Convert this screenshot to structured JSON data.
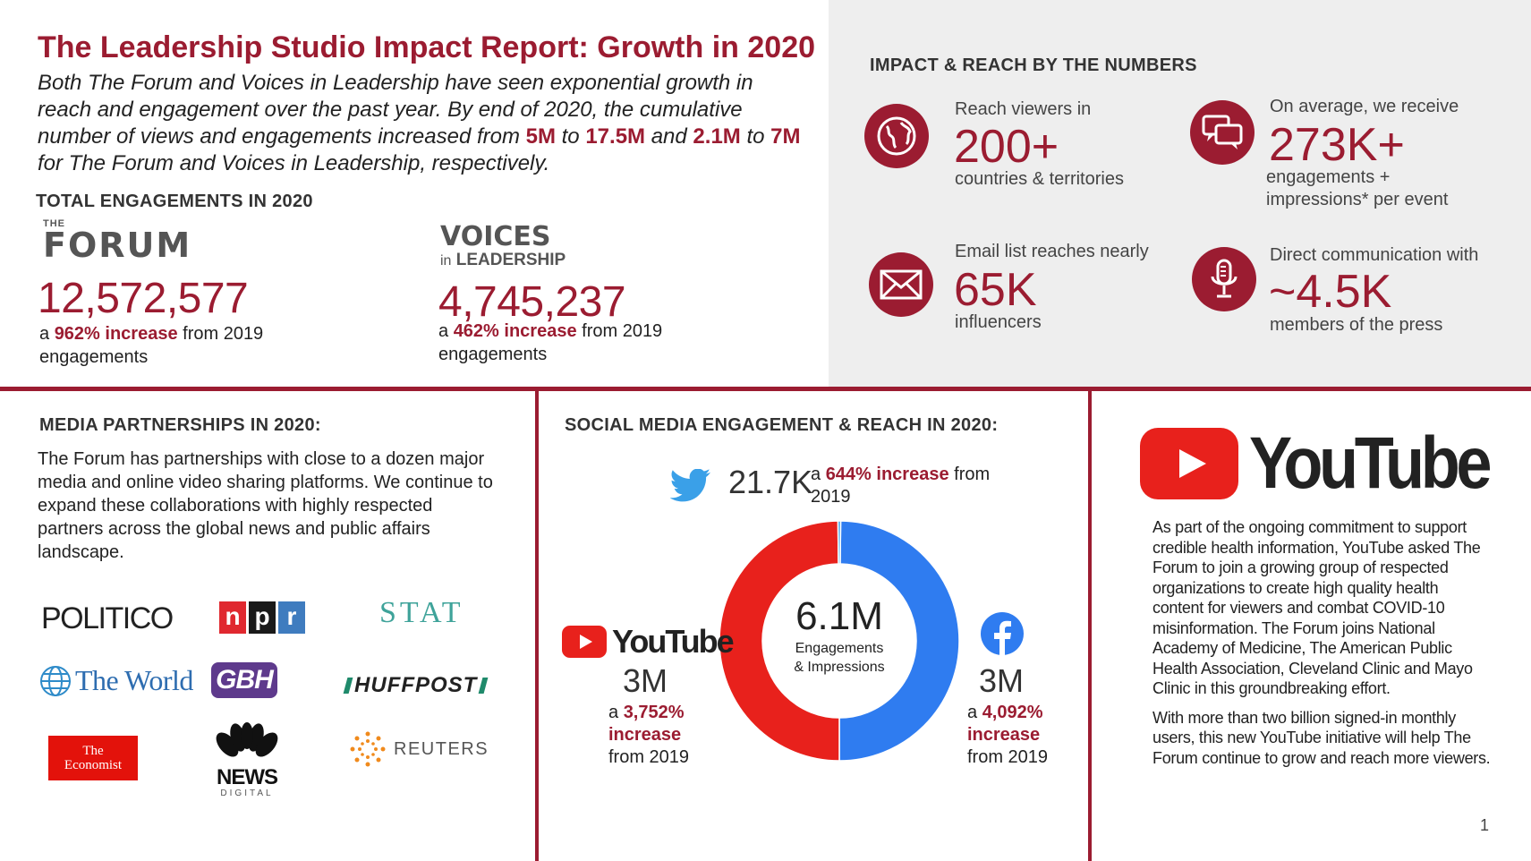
{
  "header": {
    "title": "The Leadership Studio Impact Report: Growth in 2020",
    "intro_part1": "Both The Forum and Voices in Leadership have seen exponential growth in reach and engagement over the past year. By end of 2020, the cumulative number of views and engagements increased from ",
    "intro_hl1": "5M",
    "intro_to1": " to ",
    "intro_hl2": "17.5M",
    "intro_part2": " and ",
    "intro_hl3": "2.1M",
    "intro_to2": " to ",
    "intro_hl4": "7M",
    "intro_part3": " for The Forum and Voices in Leadership, respectively."
  },
  "engagements": {
    "heading": "TOTAL ENGAGEMENTS IN 2020",
    "forum": {
      "logo_small": "THE",
      "logo_main": "FORUM",
      "total": "12,572,577",
      "prefix": "a ",
      "increase": "962% increase",
      "suffix": " from 2019 engagements"
    },
    "vil": {
      "logo_line1": "VOICES",
      "logo_in": "in",
      "logo_line2": "LEADERSHIP",
      "total": "4,745,237",
      "prefix": "a ",
      "increase": "462% increase",
      "suffix": " from 2019 engagements"
    }
  },
  "impact": {
    "heading": "IMPACT & REACH BY THE NUMBERS",
    "stats": [
      {
        "icon": "globe-icon",
        "label": "Reach viewers in",
        "value": "200+",
        "sub": "countries & territories"
      },
      {
        "icon": "chat-icon",
        "label": "On average, we receive",
        "value": "273K+",
        "sub": "engagements + impressions* per event"
      },
      {
        "icon": "envelope-icon",
        "label": "Email list reaches nearly",
        "value": "65K",
        "sub": "influencers"
      },
      {
        "icon": "microphone-icon",
        "label": "Direct communication with",
        "value": "~4.5K",
        "sub": "members of the press"
      }
    ]
  },
  "media": {
    "heading": "MEDIA PARTNERSHIPS IN 2020:",
    "body": "The Forum has partnerships with close to a dozen major media and online video sharing platforms. We continue to expand these collaborations with highly respected partners across the global news and public affairs landscape.",
    "partners": {
      "politico": "POLITICO",
      "npr": [
        "n",
        "p",
        "r"
      ],
      "stat": "STAT",
      "theworld": "The World",
      "gbh": "GBH",
      "huffpost": "HUFFPOST",
      "economist_1": "The",
      "economist_2": "Economist",
      "news": "NEWS",
      "news_sub": "DIGITAL",
      "reuters": "REUTERS"
    }
  },
  "social": {
    "heading": "SOCIAL MEDIA ENGAGEMENT & REACH IN 2020:",
    "twitter": {
      "value": "21.7K",
      "prefix": "a ",
      "increase": "644% increase",
      "suffix": " from 2019"
    },
    "youtube": {
      "logo": "YouTube",
      "value": "3M",
      "prefix": "a ",
      "increase": "3,752% increase",
      "suffix": "from 2019"
    },
    "facebook": {
      "value": "3M",
      "prefix": "a ",
      "increase": "4,092% increase",
      "suffix": "from 2019"
    },
    "center_value": "6.1M",
    "center_label_1": "Engagements",
    "center_label_2": "& Impressions"
  },
  "chart_data": {
    "type": "pie",
    "categories": [
      "Facebook",
      "YouTube",
      "Twitter"
    ],
    "values": [
      3.0,
      3.0,
      0.0217
    ],
    "colors": [
      "#2f7cf0",
      "#e8211c",
      "#3aa0e8"
    ],
    "total_label": "6.1M"
  },
  "youtube_panel": {
    "logo": "YouTube",
    "para1": "As part of the ongoing commitment to support credible health information, YouTube asked The Forum to join a growing group of respected organizations to create high quality health content for viewers and combat COVID-10 misinformation. The Forum joins National Academy of Medicine, The American Public Health Association, Cleveland Clinic and Mayo Clinic in this groundbreaking effort.",
    "para2": "With more than two billion signed-in monthly users, this new YouTube initiative will help The Forum continue to grow and reach more viewers."
  },
  "page_number": "1",
  "colors": {
    "accent": "#9b1c31",
    "panel": "#eeeeee",
    "youtube_red": "#e8211c",
    "facebook_blue": "#2f7cf0",
    "twitter_blue": "#3aa0e8"
  }
}
